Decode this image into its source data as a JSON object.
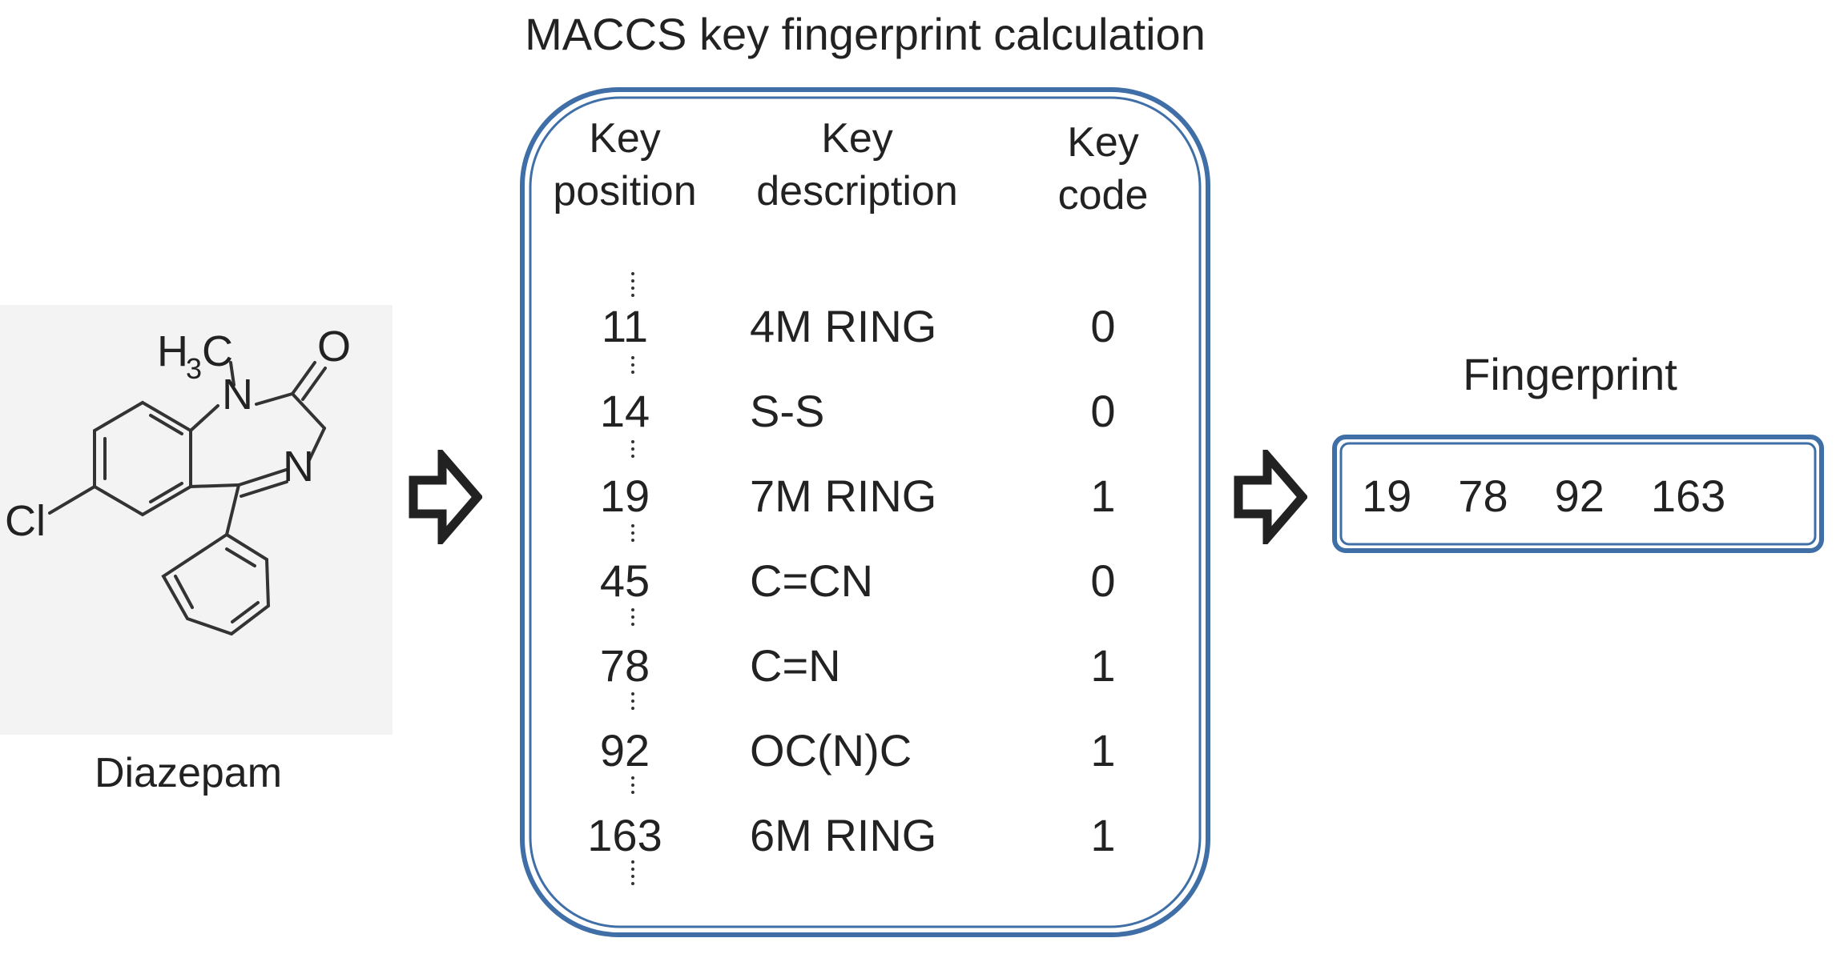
{
  "molecule": {
    "name": "Diazepam",
    "atoms": {
      "methyl_h": "H",
      "methyl_sub": "3",
      "methyl_c": "C",
      "oxygen": "O",
      "n1": "N",
      "n4": "N",
      "chlorine": "Cl"
    }
  },
  "process": {
    "title": "MACCS key fingerprint calculation",
    "headers": {
      "position": [
        "Key",
        "position"
      ],
      "description": [
        "Key",
        "description"
      ],
      "code": [
        "Key",
        "code"
      ]
    },
    "rows": [
      {
        "position": "11",
        "description": "4M RING",
        "code": "0"
      },
      {
        "position": "14",
        "description": "S-S",
        "code": "0"
      },
      {
        "position": "19",
        "description": "7M RING",
        "code": "1"
      },
      {
        "position": "45",
        "description": "C=CN",
        "code": "0"
      },
      {
        "position": "78",
        "description": "C=N",
        "code": "1"
      },
      {
        "position": "92",
        "description": "OC(N)C",
        "code": "1"
      },
      {
        "position": "163",
        "description": "6M RING",
        "code": "1"
      }
    ]
  },
  "fingerprint": {
    "title": "Fingerprint",
    "values": [
      "19",
      "78",
      "92",
      "163"
    ]
  },
  "colors": {
    "box_border": "#3f6fa6",
    "molecule_background": "#f3f3f3",
    "text": "#222222"
  }
}
